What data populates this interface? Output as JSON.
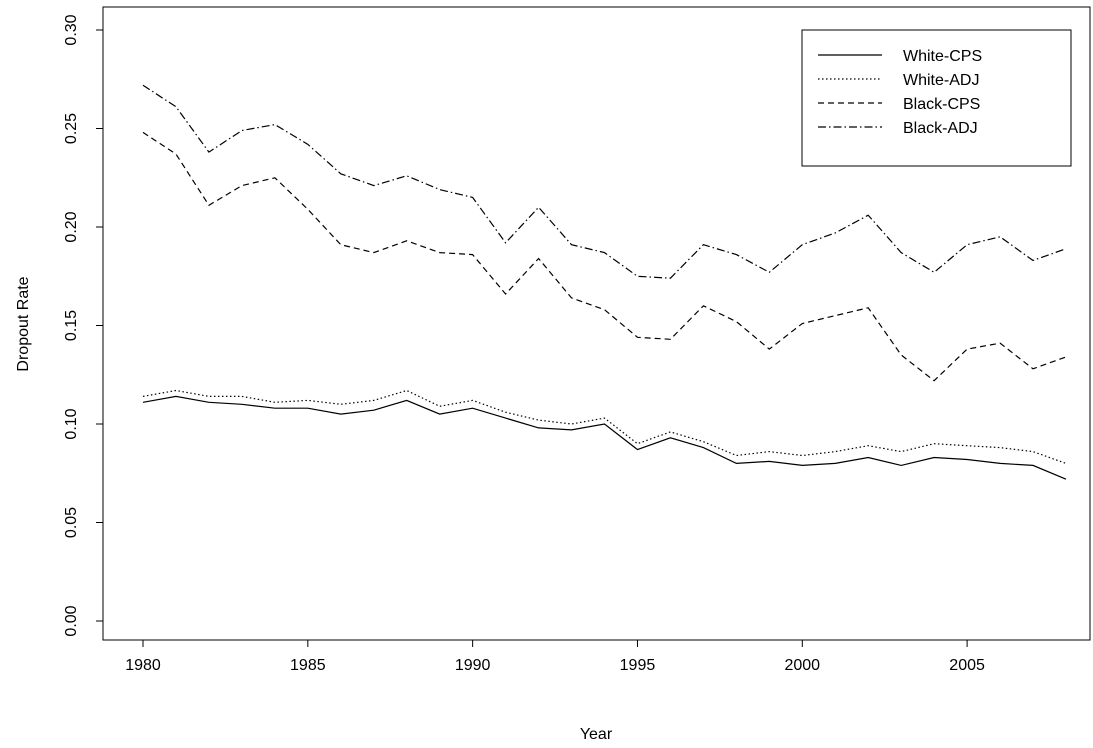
{
  "chart_data": {
    "type": "line",
    "title": "",
    "xlabel": "Year",
    "ylabel": "Dropout Rate",
    "xlim": [
      1980,
      2008
    ],
    "ylim": [
      0,
      0.3
    ],
    "x_ticks": [
      "1980",
      "1985",
      "1990",
      "1995",
      "2000",
      "2005"
    ],
    "y_ticks": [
      "0.00",
      "0.05",
      "0.10",
      "0.15",
      "0.20",
      "0.25",
      "0.30"
    ],
    "grid": false,
    "legend_position": "top-right",
    "x": [
      1980,
      1981,
      1982,
      1983,
      1984,
      1985,
      1986,
      1987,
      1988,
      1989,
      1990,
      1991,
      1992,
      1993,
      1994,
      1995,
      1996,
      1997,
      1998,
      1999,
      2000,
      2001,
      2002,
      2003,
      2004,
      2005,
      2006,
      2007,
      2008
    ],
    "series": [
      {
        "name": "White-CPS",
        "linestyle": "solid",
        "values": [
          0.111,
          0.114,
          0.111,
          0.11,
          0.108,
          0.108,
          0.105,
          0.107,
          0.112,
          0.105,
          0.108,
          0.103,
          0.098,
          0.097,
          0.1,
          0.087,
          0.093,
          0.088,
          0.08,
          0.081,
          0.079,
          0.08,
          0.083,
          0.079,
          0.083,
          0.082,
          0.08,
          0.079,
          0.072
        ]
      },
      {
        "name": "White-ADJ",
        "linestyle": "dotted",
        "values": [
          0.114,
          0.117,
          0.114,
          0.114,
          0.111,
          0.112,
          0.11,
          0.112,
          0.117,
          0.109,
          0.112,
          0.106,
          0.102,
          0.1,
          0.103,
          0.09,
          0.096,
          0.091,
          0.084,
          0.086,
          0.084,
          0.086,
          0.089,
          0.086,
          0.09,
          0.089,
          0.088,
          0.086,
          0.08
        ]
      },
      {
        "name": "Black-CPS",
        "linestyle": "dashed",
        "values": [
          0.248,
          0.237,
          0.211,
          0.221,
          0.225,
          0.209,
          0.191,
          0.187,
          0.193,
          0.187,
          0.186,
          0.166,
          0.184,
          0.164,
          0.158,
          0.144,
          0.143,
          0.16,
          0.152,
          0.138,
          0.151,
          0.155,
          0.159,
          0.135,
          0.122,
          0.138,
          0.141,
          0.128,
          0.134
        ]
      },
      {
        "name": "Black-ADJ",
        "linestyle": "dashdot",
        "values": [
          0.272,
          0.261,
          0.238,
          0.249,
          0.252,
          0.242,
          0.227,
          0.221,
          0.226,
          0.219,
          0.215,
          0.192,
          0.21,
          0.191,
          0.187,
          0.175,
          0.174,
          0.191,
          0.186,
          0.177,
          0.191,
          0.197,
          0.206,
          0.187,
          0.177,
          0.191,
          0.195,
          0.183,
          0.189
        ]
      }
    ]
  }
}
